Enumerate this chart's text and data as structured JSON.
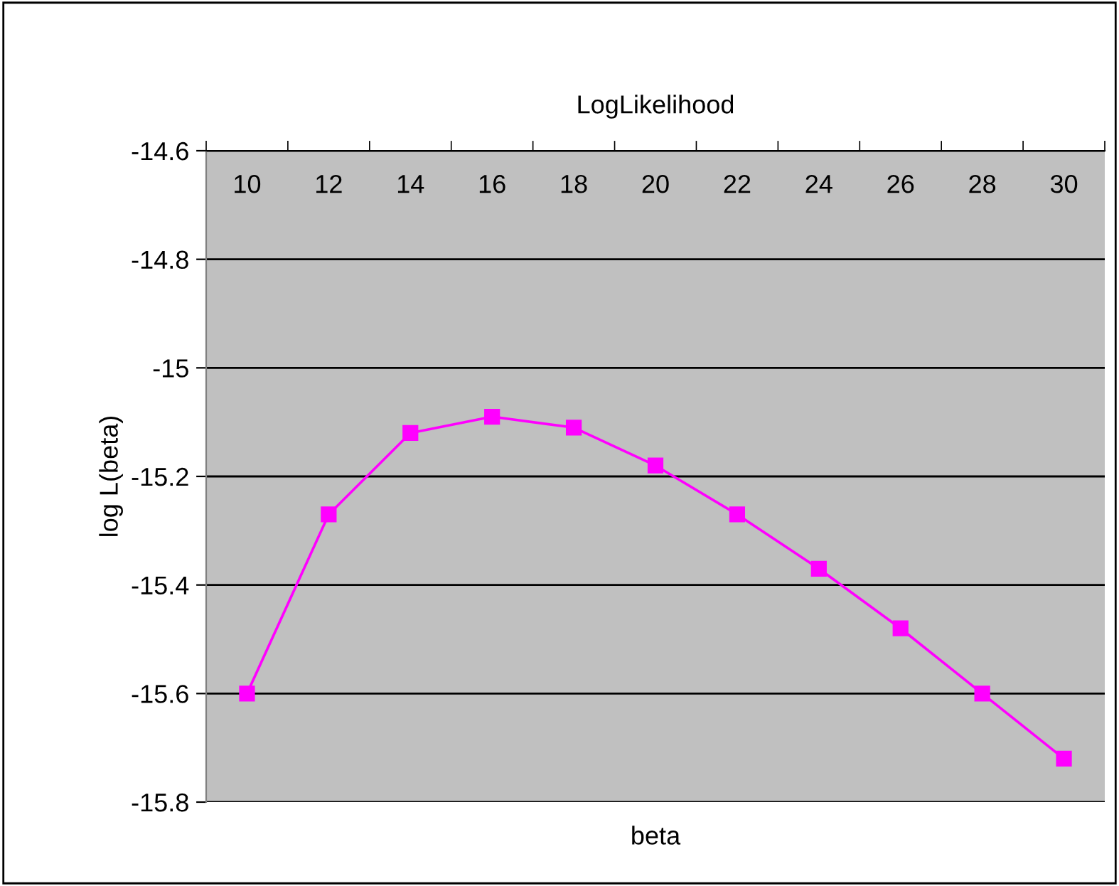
{
  "chart_data": {
    "type": "line",
    "title": "LogLikelihood",
    "xlabel": "beta",
    "ylabel": "log L(beta)",
    "categories": [
      "10",
      "12",
      "14",
      "16",
      "18",
      "20",
      "22",
      "24",
      "26",
      "28",
      "30"
    ],
    "series": [
      {
        "color": "#ff00ff",
        "values": [
          -15.6,
          -15.27,
          -15.12,
          -15.09,
          -15.11,
          -15.18,
          -15.27,
          -15.37,
          -15.48,
          -15.6,
          -15.72
        ]
      }
    ],
    "ylim": [
      -15.8,
      -14.6
    ],
    "yticks": [
      {
        "value": -15.8,
        "label": "-15.8"
      },
      {
        "value": -15.6,
        "label": "-15.6"
      },
      {
        "value": -15.4,
        "label": "-15.4"
      },
      {
        "value": -15.2,
        "label": "-15.2"
      },
      {
        "value": -15,
        "label": "-15"
      },
      {
        "value": -14.8,
        "label": "-14.8"
      },
      {
        "value": -14.6,
        "label": "-14.6"
      }
    ],
    "grid": "y",
    "marker": "square",
    "line_style": "solid",
    "legend": false
  }
}
